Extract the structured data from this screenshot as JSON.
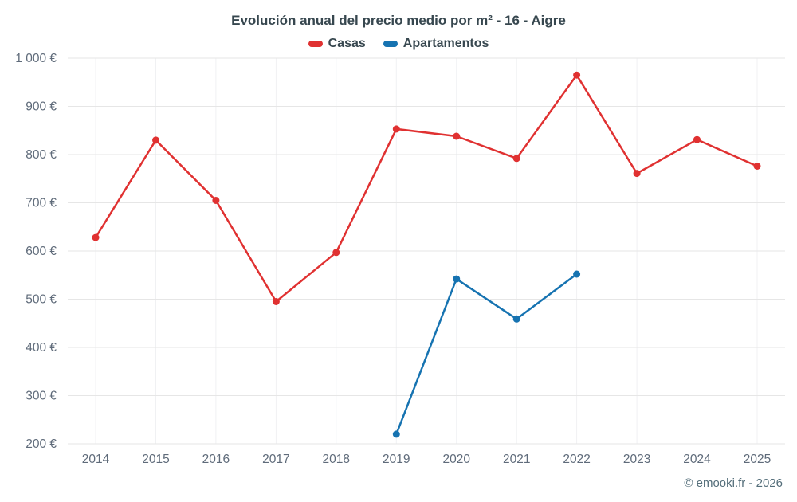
{
  "page": {
    "title": "Evolución anual del precio medio por m² - 16 - Aigre",
    "footer_credit": "© emooki.fr - 2026"
  },
  "legend": {
    "items": [
      {
        "label": "Casas",
        "color": "#e03131"
      },
      {
        "label": "Apartamentos",
        "color": "#1673b1"
      }
    ]
  },
  "chart_data": {
    "type": "line",
    "title": "Evolución anual del precio medio por m² - 16 - Aigre",
    "categories": [
      "2014",
      "2015",
      "2016",
      "2017",
      "2018",
      "2019",
      "2020",
      "2021",
      "2022",
      "2023",
      "2024",
      "2025"
    ],
    "series": [
      {
        "name": "Casas",
        "color": "#e03131",
        "values": [
          628,
          830,
          705,
          495,
          597,
          853,
          838,
          792,
          965,
          761,
          831,
          776
        ]
      },
      {
        "name": "Apartamentos",
        "color": "#1673b1",
        "values": [
          null,
          null,
          null,
          null,
          null,
          220,
          542,
          459,
          552,
          null,
          null,
          null
        ]
      }
    ],
    "xlabel": "",
    "ylabel": "",
    "ylim": [
      200,
      1000
    ],
    "ytick_step": 100,
    "ytick_labels": [
      "200 €",
      "300 €",
      "400 €",
      "500 €",
      "600 €",
      "700 €",
      "800 €",
      "900 €",
      "1 000 €"
    ],
    "grid": true,
    "legend_position": "top",
    "marker_radius": 4.5,
    "line_width": 2.5,
    "grid_color": "#e6e6e6",
    "vgrid_color": "#f0f1f3",
    "tick_label_color": "#5f6b7a"
  }
}
